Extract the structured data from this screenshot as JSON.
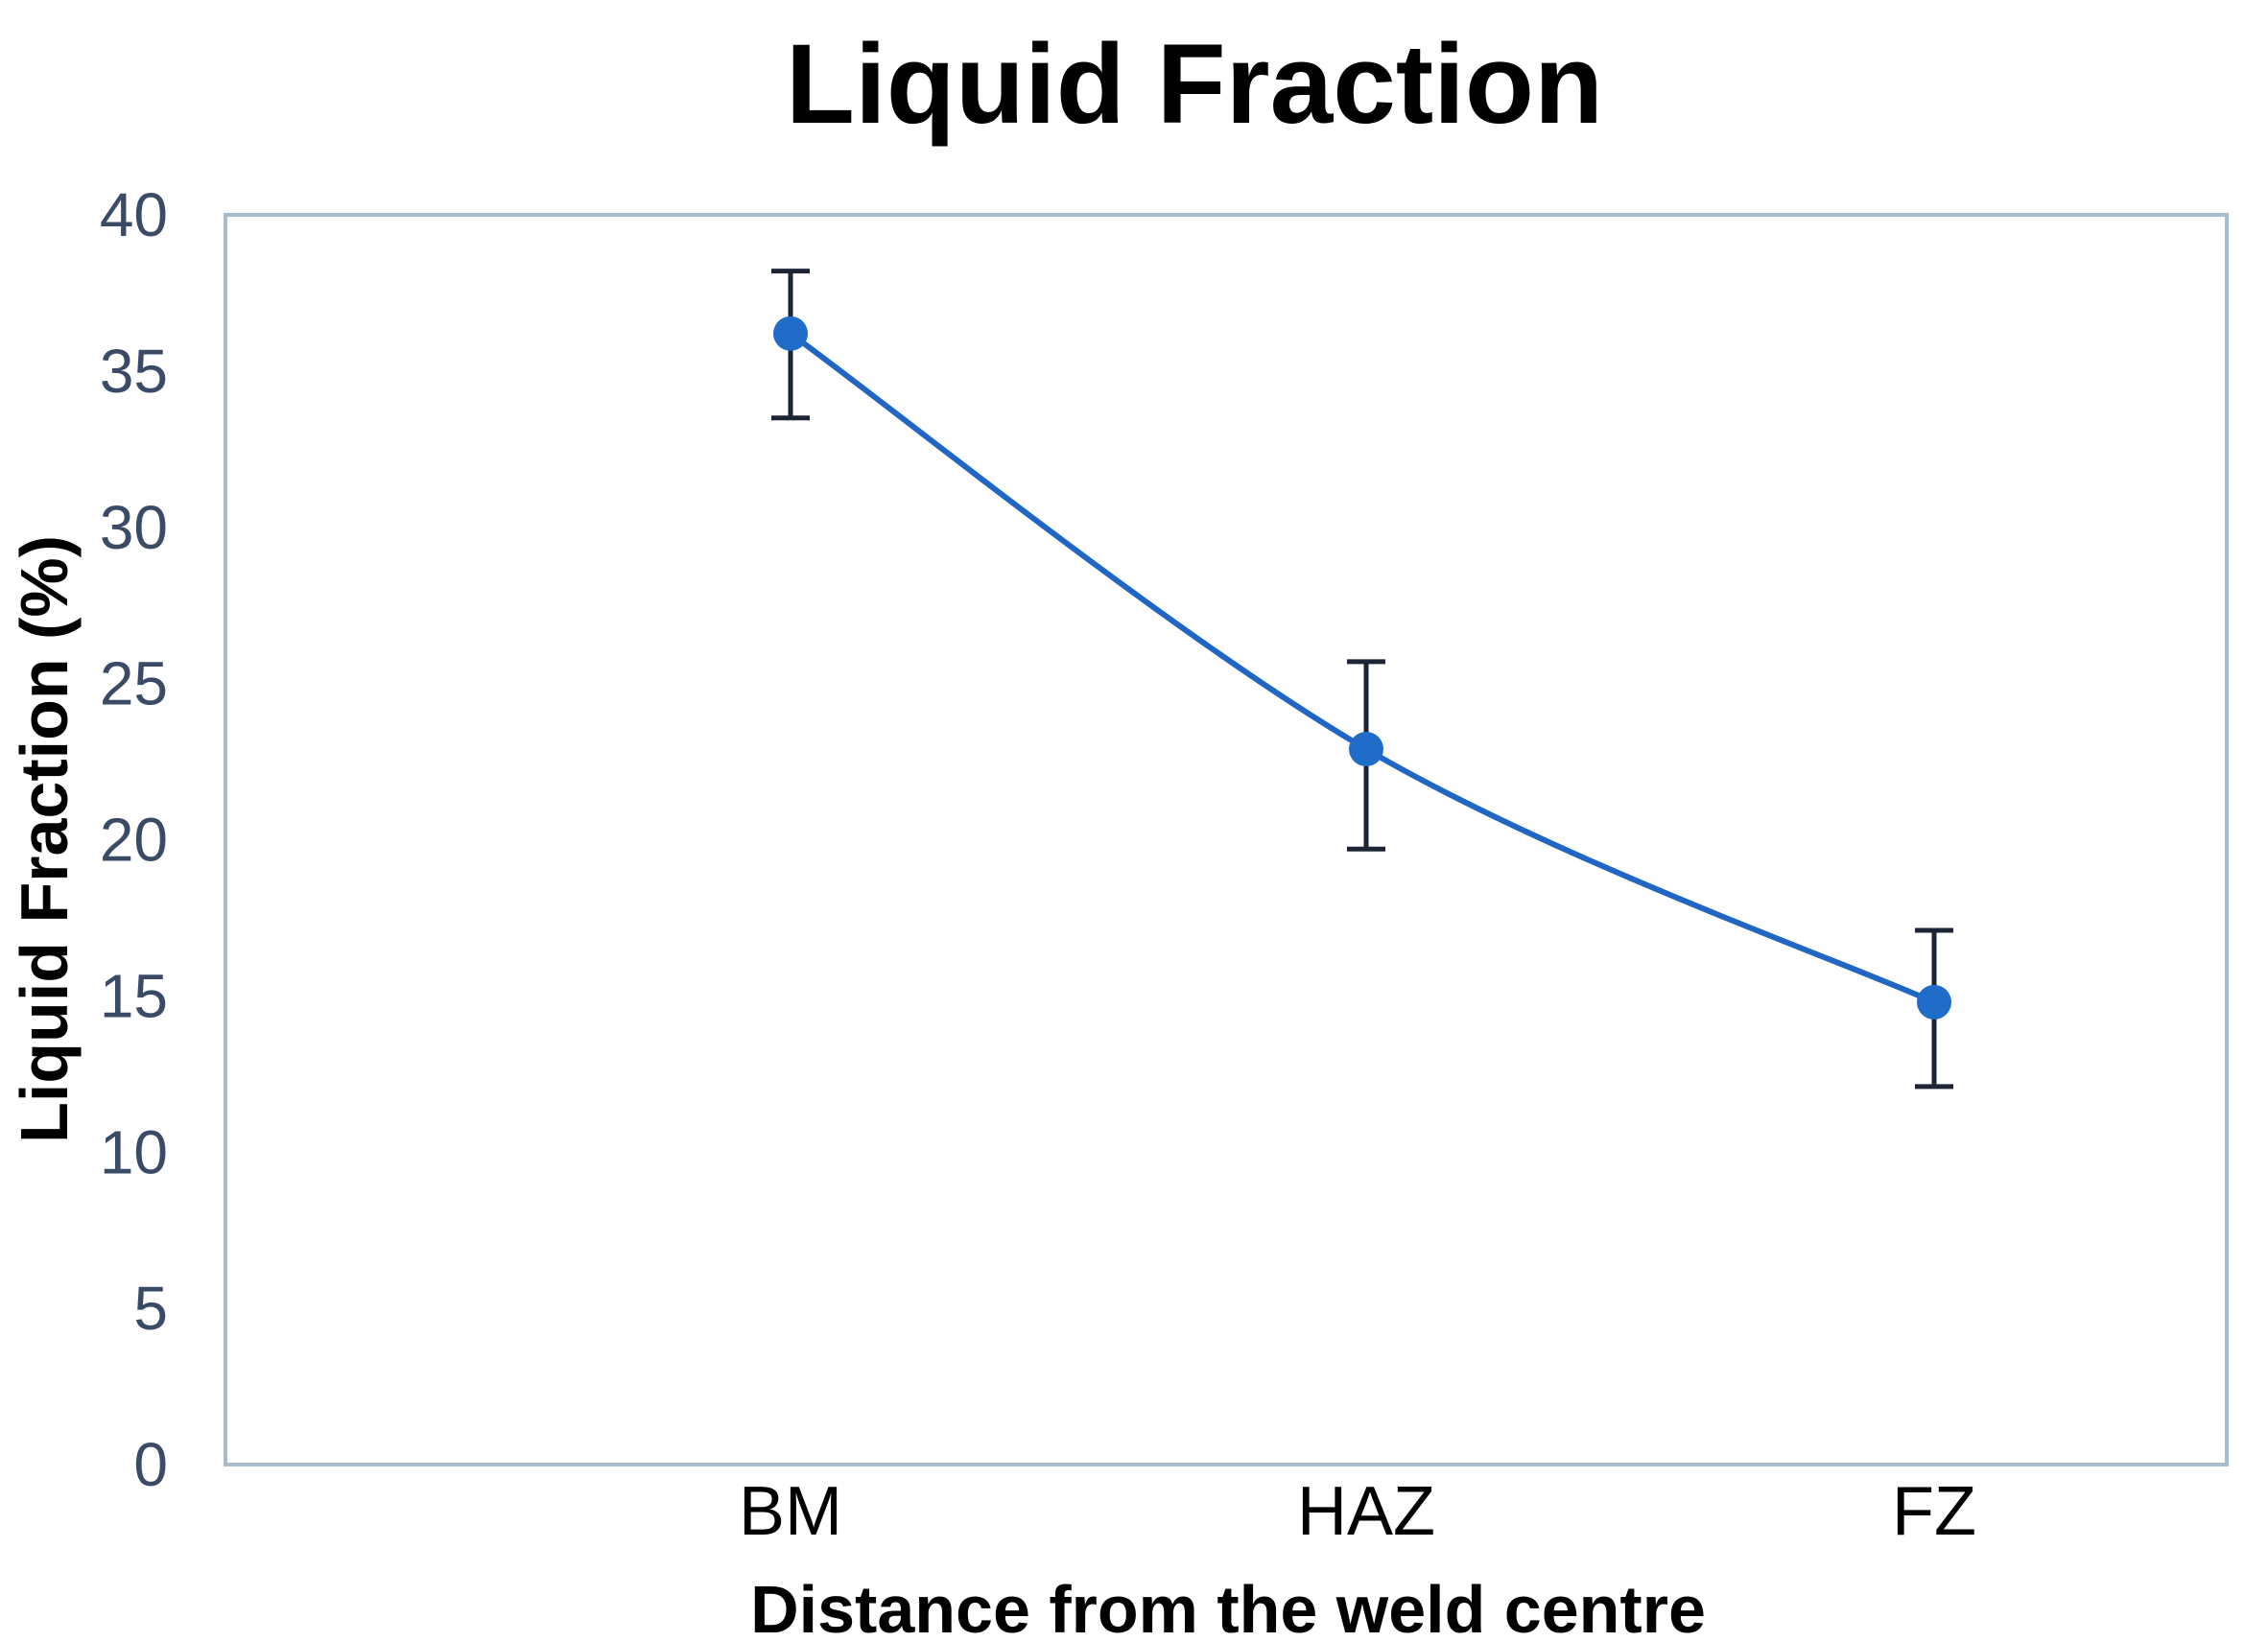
{
  "chart_data": {
    "type": "line",
    "title": "Liquid Fraction",
    "xlabel": "Distance from the weld centre",
    "ylabel": "Liquid Fraction (%)",
    "categories": [
      "BM",
      "HAZ",
      "FZ"
    ],
    "series": [
      {
        "values": [
          36.2,
          22.9,
          14.8
        ],
        "error_upper": [
          38.2,
          25.7,
          17.1
        ],
        "error_lower": [
          33.5,
          19.7,
          12.1
        ]
      }
    ],
    "ylim": [
      0,
      40
    ],
    "yticks": [
      "0",
      "5",
      "10",
      "15",
      "20",
      "25",
      "30",
      "35",
      "40"
    ],
    "grid": false,
    "legend": "none",
    "colors": {
      "line": "#2166c4",
      "marker": "#1f6cc9",
      "error_bar": "#1c2436",
      "plot_border": "#a7bccd",
      "tick_text": "#3b4a66"
    }
  }
}
